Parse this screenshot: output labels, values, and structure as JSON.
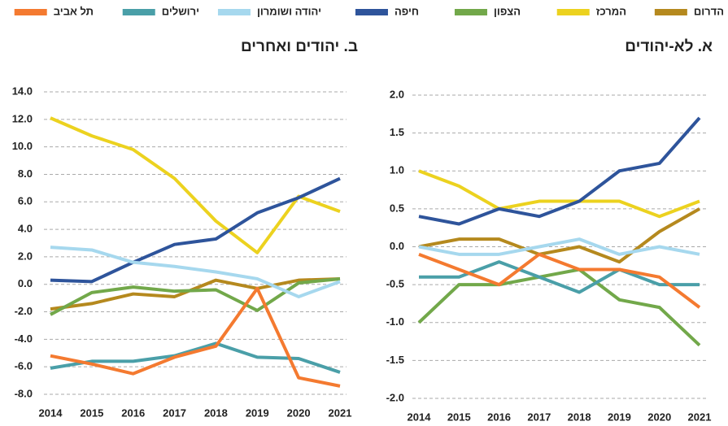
{
  "chart_data": [
    {
      "type": "line",
      "title": "א. לא-יהודים",
      "categories": [
        "2014",
        "2015",
        "2016",
        "2017",
        "2018",
        "2019",
        "2020",
        "2021"
      ],
      "ylim": [
        -2,
        2
      ],
      "yticks": [
        {
          "value": -2,
          "label": "-2.0"
        },
        {
          "value": -1.5,
          "label": "-1.5"
        },
        {
          "value": -1,
          "label": "-1.0"
        },
        {
          "value": -0.5,
          "label": "-0.5"
        },
        {
          "value": 0,
          "label": "0.0"
        },
        {
          "value": 0.5,
          "label": "0.5"
        },
        {
          "value": 1,
          "label": "1.0"
        },
        {
          "value": 1.5,
          "label": "1.5"
        },
        {
          "value": 2,
          "label": "2.0"
        }
      ],
      "grid": true,
      "series": [
        {
          "name": "הדרום",
          "color": "#b5891e",
          "values": [
            0.0,
            0.1,
            0.1,
            -0.1,
            0.0,
            -0.2,
            0.2,
            0.5
          ]
        },
        {
          "name": "המרכז",
          "color": "#ecd21f",
          "values": [
            1.0,
            0.8,
            0.5,
            0.6,
            0.6,
            0.6,
            0.4,
            0.6
          ]
        },
        {
          "name": "הצפון",
          "color": "#72a84a",
          "values": [
            -1.0,
            -0.5,
            -0.5,
            -0.4,
            -0.3,
            -0.7,
            -0.8,
            -1.3
          ]
        },
        {
          "name": "חיפה",
          "color": "#2e549b",
          "values": [
            0.4,
            0.3,
            0.5,
            0.4,
            0.6,
            1.0,
            1.1,
            1.7
          ]
        },
        {
          "name": "יהודה ושומרון",
          "color": "#a6d8ee",
          "values": [
            0.0,
            -0.1,
            -0.1,
            0.0,
            0.1,
            -0.1,
            0.0,
            -0.1
          ]
        },
        {
          "name": "ירושלים",
          "color": "#4a9fa8",
          "values": [
            -0.4,
            -0.4,
            -0.2,
            -0.4,
            -0.6,
            -0.3,
            -0.5,
            -0.5
          ]
        },
        {
          "name": "תל אביב",
          "color": "#f47a30",
          "values": [
            -0.1,
            -0.3,
            -0.5,
            -0.1,
            -0.3,
            -0.3,
            -0.4,
            -0.8
          ]
        }
      ]
    },
    {
      "type": "line",
      "title": "ב. יהודים ואחרים",
      "categories": [
        "2014",
        "2015",
        "2016",
        "2017",
        "2018",
        "2019",
        "2020",
        "2021"
      ],
      "ylim": [
        -8,
        14
      ],
      "yticks": [
        {
          "value": -8,
          "label": "-8.0"
        },
        {
          "value": -6,
          "label": "-6.0"
        },
        {
          "value": -4,
          "label": "-4.0"
        },
        {
          "value": -2,
          "label": "-2.0"
        },
        {
          "value": 0,
          "label": "0.0"
        },
        {
          "value": 2,
          "label": "2.0"
        },
        {
          "value": 4,
          "label": "4.0"
        },
        {
          "value": 6,
          "label": "6.0"
        },
        {
          "value": 8,
          "label": "8.0"
        },
        {
          "value": 10,
          "label": "10.0"
        },
        {
          "value": 12,
          "label": "12.0"
        },
        {
          "value": 14,
          "label": "14.0"
        }
      ],
      "grid": true,
      "series": [
        {
          "name": "הדרום",
          "color": "#b5891e",
          "values": [
            -1.8,
            -1.4,
            -0.7,
            -0.9,
            0.3,
            -0.3,
            0.3,
            0.4
          ]
        },
        {
          "name": "המרכז",
          "color": "#ecd21f",
          "values": [
            12.1,
            10.8,
            9.8,
            7.7,
            4.6,
            2.3,
            6.4,
            5.3
          ]
        },
        {
          "name": "הצפון",
          "color": "#72a84a",
          "values": [
            -2.2,
            -0.6,
            -0.2,
            -0.5,
            -0.4,
            -1.9,
            0.1,
            0.4
          ]
        },
        {
          "name": "חיפה",
          "color": "#2e549b",
          "values": [
            0.3,
            0.2,
            1.6,
            2.9,
            3.3,
            5.2,
            6.3,
            7.7
          ]
        },
        {
          "name": "יהודה ושומרון",
          "color": "#a6d8ee",
          "values": [
            2.7,
            2.5,
            1.6,
            1.3,
            0.9,
            0.4,
            -0.9,
            0.2
          ]
        },
        {
          "name": "ירושלים",
          "color": "#4a9fa8",
          "values": [
            -6.1,
            -5.6,
            -5.6,
            -5.2,
            -4.3,
            -5.3,
            -5.4,
            -6.4
          ]
        },
        {
          "name": "תל אביב",
          "color": "#f47a30",
          "values": [
            -5.2,
            -5.8,
            -6.5,
            -5.3,
            -4.5,
            -0.3,
            -6.8,
            -7.4
          ]
        }
      ]
    }
  ]
}
